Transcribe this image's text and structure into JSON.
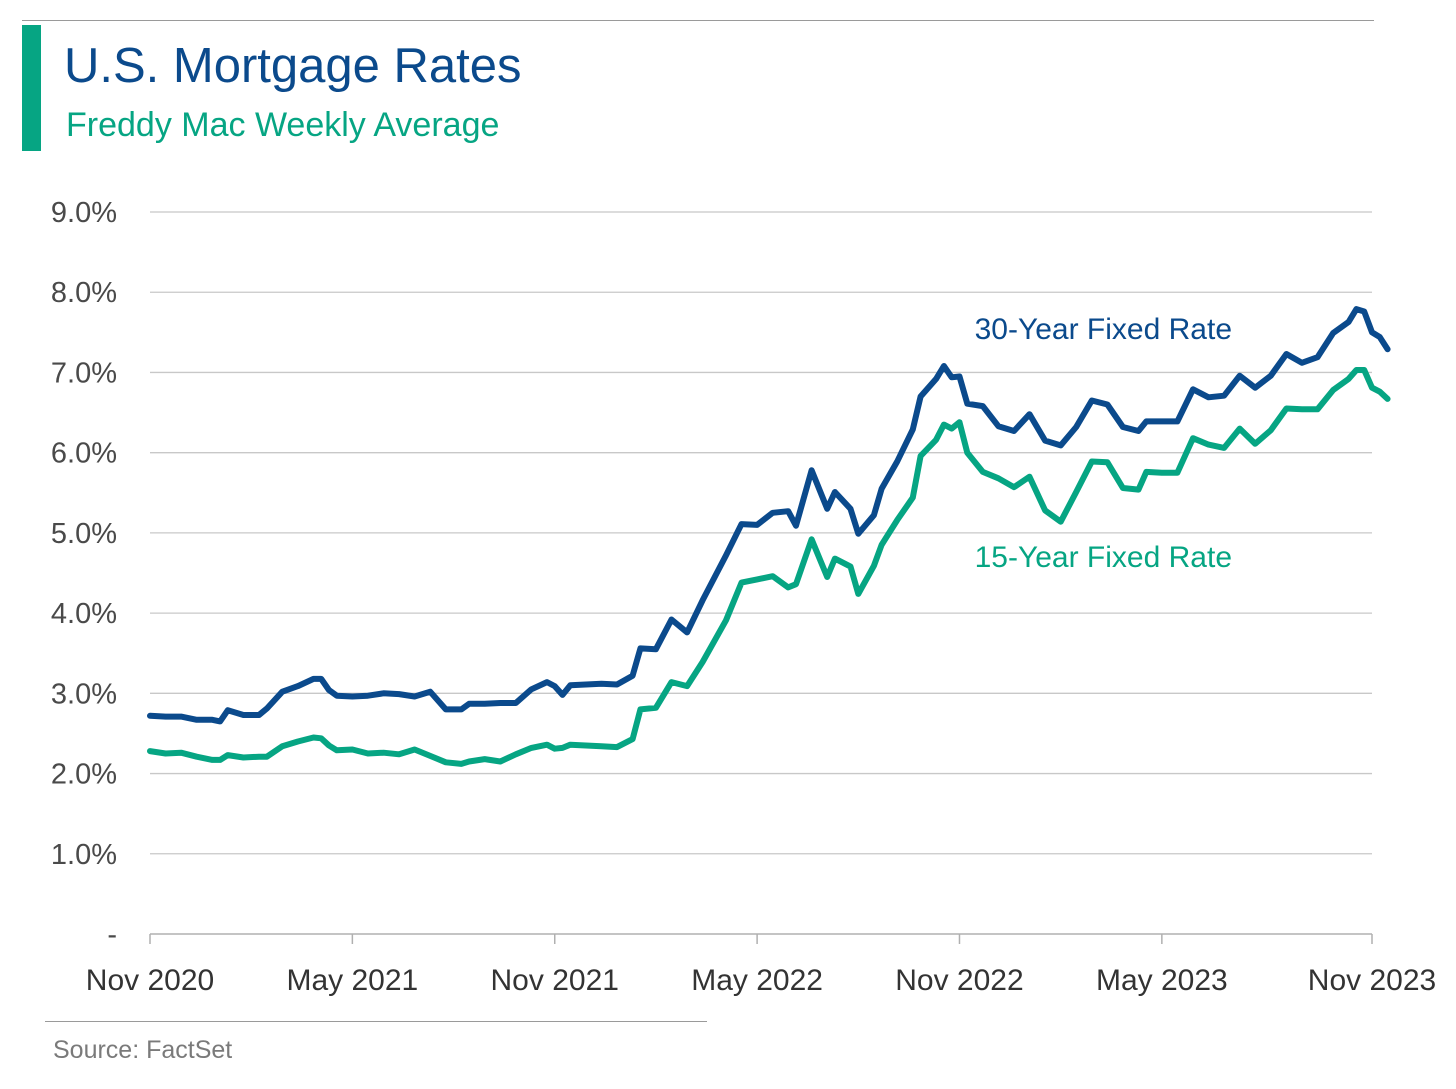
{
  "header": {
    "title": "U.S. Mortgage Rates",
    "subtitle": "Freddy Mac Weekly Average"
  },
  "footer": {
    "source": "Source: FactSet"
  },
  "colors": {
    "accent": "#06a583",
    "title": "#0b4a8c",
    "series_30y": "#0b4a8c",
    "series_15y": "#06a583",
    "gridline": "#c8c8c8"
  },
  "chart_data": {
    "type": "line",
    "title": "U.S. Mortgage Rates",
    "subtitle": "Freddy Mac Weekly Average",
    "xlabel": "",
    "ylabel": "",
    "x_start": "2020-11-05",
    "x_end": "2023-11-09",
    "y_tick_labels": [
      "-",
      "1.0%",
      "2.0%",
      "3.0%",
      "4.0%",
      "5.0%",
      "6.0%",
      "7.0%",
      "8.0%",
      "9.0%"
    ],
    "y_tick_values": [
      0,
      1,
      2,
      3,
      4,
      5,
      6,
      7,
      8,
      9
    ],
    "ylim": [
      0,
      9
    ],
    "x_ticks": [
      {
        "date": "2020-11-05",
        "label": "Nov 2020"
      },
      {
        "date": "2021-05-06",
        "label": "May 2021"
      },
      {
        "date": "2021-11-04",
        "label": "Nov 2021"
      },
      {
        "date": "2022-05-05",
        "label": "May 2022"
      },
      {
        "date": "2022-11-03",
        "label": "Nov 2022"
      },
      {
        "date": "2023-05-04",
        "label": "May 2023"
      },
      {
        "date": "2023-11-09",
        "label": "Nov 2023"
      }
    ],
    "grid": true,
    "legend": "inline labels",
    "series": [
      {
        "name": "30-Year Fixed Rate",
        "color": "#0b4a8c",
        "points": [
          [
            "2020-11-05",
            2.72
          ],
          [
            "2020-11-19",
            2.71
          ],
          [
            "2020-12-03",
            2.71
          ],
          [
            "2020-12-17",
            2.67
          ],
          [
            "2020-12-31",
            2.67
          ],
          [
            "2021-01-07",
            2.65
          ],
          [
            "2021-01-14",
            2.79
          ],
          [
            "2021-01-28",
            2.73
          ],
          [
            "2021-02-11",
            2.73
          ],
          [
            "2021-02-18",
            2.81
          ],
          [
            "2021-03-04",
            3.02
          ],
          [
            "2021-03-18",
            3.09
          ],
          [
            "2021-04-01",
            3.18
          ],
          [
            "2021-04-08",
            3.18
          ],
          [
            "2021-04-15",
            3.04
          ],
          [
            "2021-04-22",
            2.97
          ],
          [
            "2021-05-06",
            2.96
          ],
          [
            "2021-05-20",
            2.97
          ],
          [
            "2021-06-03",
            3.0
          ],
          [
            "2021-06-17",
            2.99
          ],
          [
            "2021-07-01",
            2.96
          ],
          [
            "2021-07-15",
            3.02
          ],
          [
            "2021-07-29",
            2.8
          ],
          [
            "2021-08-12",
            2.8
          ],
          [
            "2021-08-19",
            2.87
          ],
          [
            "2021-09-02",
            2.87
          ],
          [
            "2021-09-16",
            2.88
          ],
          [
            "2021-09-30",
            2.88
          ],
          [
            "2021-10-14",
            3.05
          ],
          [
            "2021-10-28",
            3.14
          ],
          [
            "2021-11-04",
            3.09
          ],
          [
            "2021-11-11",
            2.98
          ],
          [
            "2021-11-18",
            3.1
          ],
          [
            "2021-12-02",
            3.11
          ],
          [
            "2021-12-16",
            3.12
          ],
          [
            "2021-12-30",
            3.11
          ],
          [
            "2022-01-13",
            3.22
          ],
          [
            "2022-01-20",
            3.56
          ],
          [
            "2022-02-03",
            3.55
          ],
          [
            "2022-02-17",
            3.92
          ],
          [
            "2022-03-03",
            3.76
          ],
          [
            "2022-03-17",
            4.16
          ],
          [
            "2022-04-07",
            4.72
          ],
          [
            "2022-04-21",
            5.11
          ],
          [
            "2022-05-05",
            5.1
          ],
          [
            "2022-05-19",
            5.25
          ],
          [
            "2022-06-02",
            5.27
          ],
          [
            "2022-06-09",
            5.09
          ],
          [
            "2022-06-23",
            5.78
          ],
          [
            "2022-07-07",
            5.3
          ],
          [
            "2022-07-14",
            5.51
          ],
          [
            "2022-07-28",
            5.3
          ],
          [
            "2022-08-04",
            4.99
          ],
          [
            "2022-08-18",
            5.22
          ],
          [
            "2022-08-25",
            5.55
          ],
          [
            "2022-09-08",
            5.89
          ],
          [
            "2022-09-22",
            6.29
          ],
          [
            "2022-09-29",
            6.7
          ],
          [
            "2022-10-13",
            6.92
          ],
          [
            "2022-10-20",
            7.08
          ],
          [
            "2022-10-27",
            6.94
          ],
          [
            "2022-11-03",
            6.95
          ],
          [
            "2022-11-10",
            6.61
          ],
          [
            "2022-11-24",
            6.58
          ],
          [
            "2022-12-08",
            6.33
          ],
          [
            "2022-12-22",
            6.27
          ],
          [
            "2023-01-05",
            6.48
          ],
          [
            "2023-01-19",
            6.15
          ],
          [
            "2023-02-02",
            6.09
          ],
          [
            "2023-02-16",
            6.32
          ],
          [
            "2023-03-02",
            6.65
          ],
          [
            "2023-03-16",
            6.6
          ],
          [
            "2023-03-30",
            6.32
          ],
          [
            "2023-04-13",
            6.27
          ],
          [
            "2023-04-20",
            6.39
          ],
          [
            "2023-05-04",
            6.39
          ],
          [
            "2023-05-18",
            6.39
          ],
          [
            "2023-06-01",
            6.79
          ],
          [
            "2023-06-15",
            6.69
          ],
          [
            "2023-06-29",
            6.71
          ],
          [
            "2023-07-13",
            6.96
          ],
          [
            "2023-07-27",
            6.81
          ],
          [
            "2023-08-10",
            6.96
          ],
          [
            "2023-08-24",
            7.23
          ],
          [
            "2023-09-07",
            7.12
          ],
          [
            "2023-09-21",
            7.19
          ],
          [
            "2023-10-05",
            7.49
          ],
          [
            "2023-10-19",
            7.63
          ],
          [
            "2023-10-26",
            7.79
          ],
          [
            "2023-11-02",
            7.76
          ],
          [
            "2023-11-09",
            7.5
          ],
          [
            "2023-11-16",
            7.44
          ],
          [
            "2023-11-23",
            7.29
          ]
        ]
      },
      {
        "name": "15-Year Fixed Rate",
        "color": "#06a583",
        "points": [
          [
            "2020-11-05",
            2.28
          ],
          [
            "2020-11-19",
            2.25
          ],
          [
            "2020-12-03",
            2.26
          ],
          [
            "2020-12-17",
            2.21
          ],
          [
            "2020-12-31",
            2.17
          ],
          [
            "2021-01-07",
            2.17
          ],
          [
            "2021-01-14",
            2.23
          ],
          [
            "2021-01-28",
            2.2
          ],
          [
            "2021-02-11",
            2.21
          ],
          [
            "2021-02-18",
            2.21
          ],
          [
            "2021-03-04",
            2.34
          ],
          [
            "2021-03-18",
            2.4
          ],
          [
            "2021-04-01",
            2.45
          ],
          [
            "2021-04-08",
            2.44
          ],
          [
            "2021-04-15",
            2.35
          ],
          [
            "2021-04-22",
            2.29
          ],
          [
            "2021-05-06",
            2.3
          ],
          [
            "2021-05-20",
            2.25
          ],
          [
            "2021-06-03",
            2.26
          ],
          [
            "2021-06-17",
            2.24
          ],
          [
            "2021-07-01",
            2.3
          ],
          [
            "2021-07-15",
            2.22
          ],
          [
            "2021-07-29",
            2.14
          ],
          [
            "2021-08-12",
            2.12
          ],
          [
            "2021-08-19",
            2.15
          ],
          [
            "2021-09-02",
            2.18
          ],
          [
            "2021-09-16",
            2.15
          ],
          [
            "2021-09-30",
            2.24
          ],
          [
            "2021-10-14",
            2.32
          ],
          [
            "2021-10-28",
            2.36
          ],
          [
            "2021-11-04",
            2.31
          ],
          [
            "2021-11-11",
            2.32
          ],
          [
            "2021-11-18",
            2.36
          ],
          [
            "2021-12-02",
            2.35
          ],
          [
            "2021-12-16",
            2.34
          ],
          [
            "2021-12-30",
            2.33
          ],
          [
            "2022-01-13",
            2.43
          ],
          [
            "2022-01-20",
            2.8
          ],
          [
            "2022-02-03",
            2.82
          ],
          [
            "2022-02-17",
            3.14
          ],
          [
            "2022-03-03",
            3.09
          ],
          [
            "2022-03-17",
            3.39
          ],
          [
            "2022-04-07",
            3.91
          ],
          [
            "2022-04-21",
            4.38
          ],
          [
            "2022-05-05",
            4.42
          ],
          [
            "2022-05-19",
            4.46
          ],
          [
            "2022-06-02",
            4.32
          ],
          [
            "2022-06-09",
            4.36
          ],
          [
            "2022-06-23",
            4.92
          ],
          [
            "2022-07-07",
            4.45
          ],
          [
            "2022-07-14",
            4.68
          ],
          [
            "2022-07-28",
            4.58
          ],
          [
            "2022-08-04",
            4.24
          ],
          [
            "2022-08-18",
            4.59
          ],
          [
            "2022-08-25",
            4.85
          ],
          [
            "2022-09-08",
            5.16
          ],
          [
            "2022-09-22",
            5.44
          ],
          [
            "2022-09-29",
            5.96
          ],
          [
            "2022-10-13",
            6.16
          ],
          [
            "2022-10-20",
            6.35
          ],
          [
            "2022-10-27",
            6.3
          ],
          [
            "2022-11-03",
            6.38
          ],
          [
            "2022-11-10",
            6.0
          ],
          [
            "2022-11-24",
            5.76
          ],
          [
            "2022-12-08",
            5.68
          ],
          [
            "2022-12-22",
            5.57
          ],
          [
            "2023-01-05",
            5.7
          ],
          [
            "2023-01-19",
            5.28
          ],
          [
            "2023-02-02",
            5.14
          ],
          [
            "2023-02-16",
            5.51
          ],
          [
            "2023-03-02",
            5.89
          ],
          [
            "2023-03-16",
            5.88
          ],
          [
            "2023-03-30",
            5.56
          ],
          [
            "2023-04-13",
            5.54
          ],
          [
            "2023-04-20",
            5.76
          ],
          [
            "2023-05-04",
            5.75
          ],
          [
            "2023-05-18",
            5.75
          ],
          [
            "2023-06-01",
            6.18
          ],
          [
            "2023-06-15",
            6.1
          ],
          [
            "2023-06-29",
            6.06
          ],
          [
            "2023-07-13",
            6.3
          ],
          [
            "2023-07-27",
            6.11
          ],
          [
            "2023-08-10",
            6.28
          ],
          [
            "2023-08-24",
            6.55
          ],
          [
            "2023-09-07",
            6.54
          ],
          [
            "2023-09-21",
            6.54
          ],
          [
            "2023-10-05",
            6.78
          ],
          [
            "2023-10-19",
            6.92
          ],
          [
            "2023-10-26",
            7.03
          ],
          [
            "2023-11-02",
            7.03
          ],
          [
            "2023-11-09",
            6.81
          ],
          [
            "2023-11-16",
            6.76
          ],
          [
            "2023-11-23",
            6.67
          ]
        ]
      }
    ],
    "annotations": [
      {
        "text": "30-Year Fixed Rate",
        "series": 0
      },
      {
        "text": "15-Year Fixed Rate",
        "series": 1
      }
    ]
  }
}
